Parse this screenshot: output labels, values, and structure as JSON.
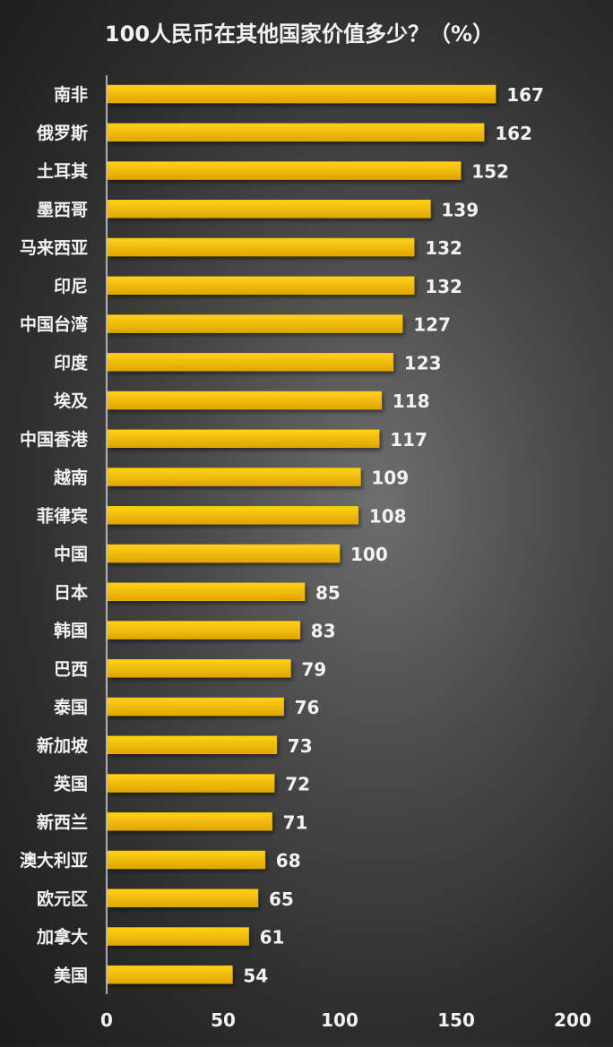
{
  "colors": {
    "bar_top": "#ffd21a",
    "bar_bottom": "#e0a500",
    "bar_edge": "#f0b400",
    "text": "#f2f2f2",
    "axis": "#d8d8d8"
  },
  "chart_data": {
    "type": "bar",
    "orientation": "horizontal",
    "title": "100人民币在其他国家价值多少？（%）",
    "xlabel": "",
    "ylabel": "",
    "xlim": [
      0,
      200
    ],
    "x_ticks": [
      0,
      50,
      100,
      150,
      200
    ],
    "grid": false,
    "legend": "none",
    "categories": [
      "南非",
      "俄罗斯",
      "土耳其",
      "墨西哥",
      "马来西亚",
      "印尼",
      "中国台湾",
      "印度",
      "埃及",
      "中国香港",
      "越南",
      "菲律宾",
      "中国",
      "日本",
      "韩国",
      "巴西",
      "泰国",
      "新加坡",
      "英国",
      "新西兰",
      "澳大利亚",
      "欧元区",
      "加拿大",
      "美国"
    ],
    "values": [
      167,
      162,
      152,
      139,
      132,
      132,
      127,
      123,
      118,
      117,
      109,
      108,
      100,
      85,
      83,
      79,
      76,
      73,
      72,
      71,
      68,
      65,
      61,
      54
    ]
  }
}
